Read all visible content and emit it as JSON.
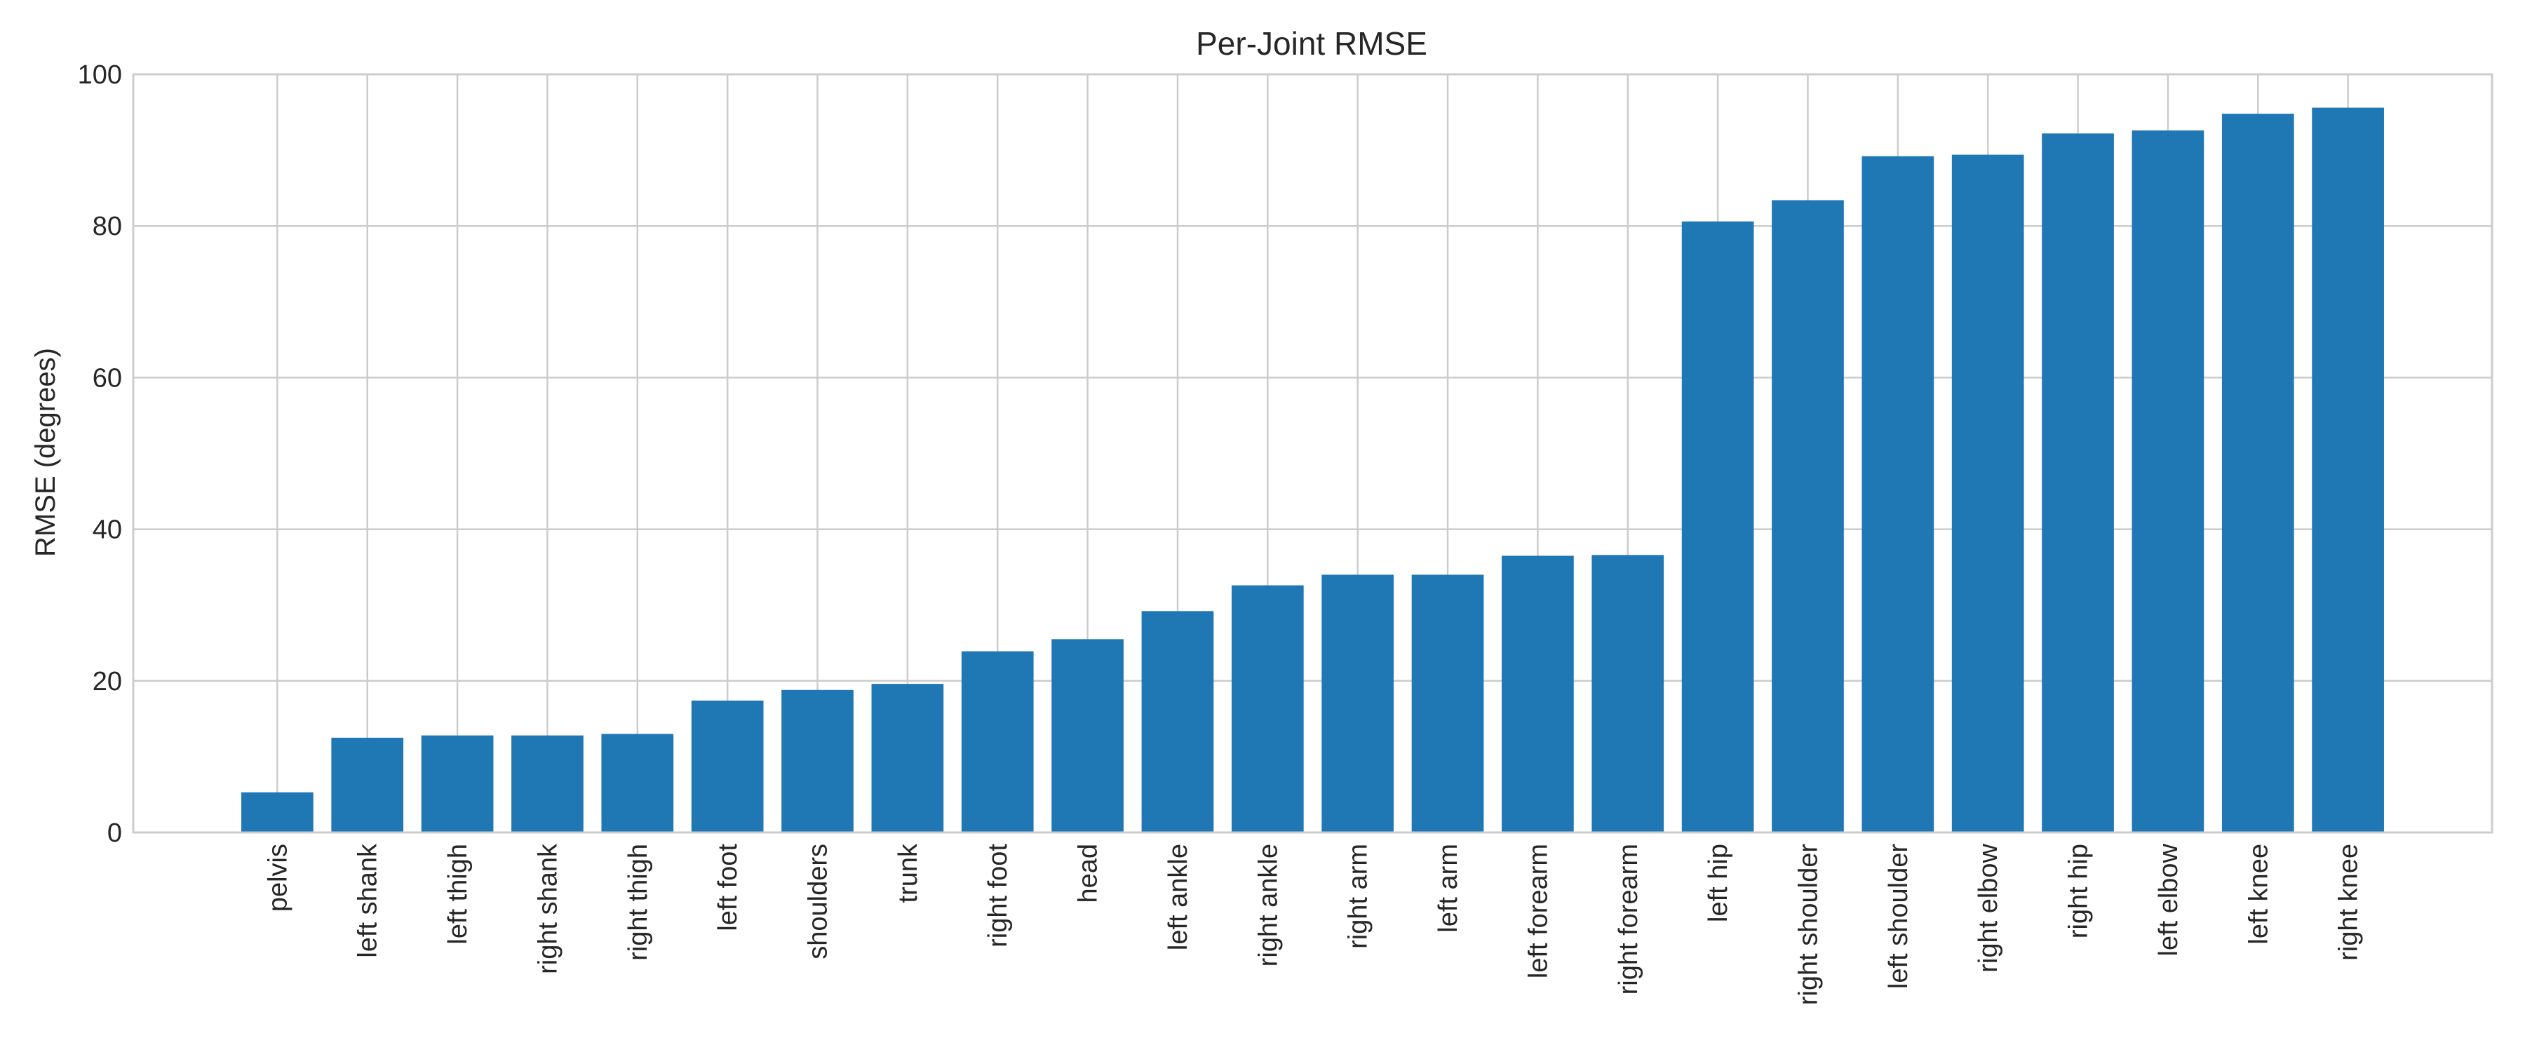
{
  "chart_data": {
    "type": "bar",
    "title": "Per-Joint RMSE",
    "xlabel": "",
    "ylabel": "RMSE (degrees)",
    "ylim": [
      0,
      100
    ],
    "yticks": [
      0,
      20,
      40,
      60,
      80,
      100
    ],
    "grid": true,
    "bar_color": "#1f77b4",
    "categories": [
      "pelvis",
      "left shank",
      "left thigh",
      "right shank",
      "right thigh",
      "left foot",
      "shoulders",
      "trunk",
      "right foot",
      "head",
      "left ankle",
      "right ankle",
      "right arm",
      "left arm",
      "left forearm",
      "right forearm",
      "left hip",
      "right shoulder",
      "left shoulder",
      "right elbow",
      "right hip",
      "left elbow",
      "left knee",
      "right knee"
    ],
    "values": [
      5.3,
      12.5,
      12.8,
      12.8,
      13.0,
      17.4,
      18.8,
      19.6,
      23.9,
      25.5,
      29.2,
      32.6,
      34.0,
      34.0,
      36.5,
      36.6,
      80.6,
      83.4,
      89.2,
      89.4,
      92.2,
      92.6,
      94.8,
      95.6
    ]
  }
}
